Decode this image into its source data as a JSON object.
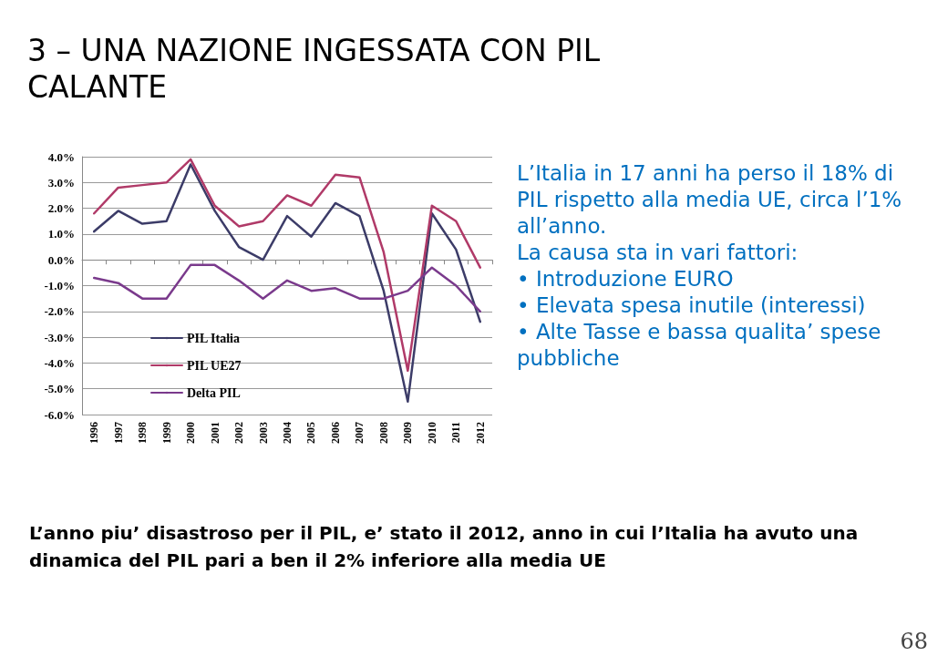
{
  "chart_data": {
    "type": "line",
    "title": "3 – UNA NAZIONE INGESSATA CON PIL CALANTE",
    "categories": [
      "1996",
      "1997",
      "1998",
      "1999",
      "2000",
      "2001",
      "2002",
      "2003",
      "2004",
      "2005",
      "2006",
      "2007",
      "2008",
      "2009",
      "2010",
      "2011",
      "2012"
    ],
    "series": [
      {
        "name": "PIL Italia",
        "color": "#3c3c68",
        "values": [
          1.1,
          1.9,
          1.4,
          1.5,
          3.7,
          1.9,
          0.5,
          0.0,
          1.7,
          0.9,
          2.2,
          1.7,
          -1.2,
          -5.5,
          1.8,
          0.4,
          -2.4
        ]
      },
      {
        "name": "PIL UE27",
        "color": "#b03a68",
        "values": [
          1.8,
          2.8,
          2.9,
          3.0,
          3.9,
          2.1,
          1.3,
          1.5,
          2.5,
          2.1,
          3.3,
          3.2,
          0.3,
          -4.3,
          2.1,
          1.5,
          -0.3
        ]
      },
      {
        "name": "Delta PIL",
        "color": "#7a3a8c",
        "values": [
          -0.7,
          -0.9,
          -1.5,
          -1.5,
          -0.2,
          -0.2,
          -0.8,
          -1.5,
          -0.8,
          -1.2,
          -1.1,
          -1.5,
          -1.5,
          -1.2,
          -0.3,
          -1.0,
          -2.0
        ]
      }
    ],
    "ylim": [
      -6,
      4
    ],
    "yticks": [
      {
        "value": -6,
        "label": "-6.0%"
      },
      {
        "value": -5,
        "label": "-5.0%"
      },
      {
        "value": -4,
        "label": "-4.0%"
      },
      {
        "value": -3,
        "label": "-3.0%"
      },
      {
        "value": -2,
        "label": "-2.0%"
      },
      {
        "value": -1,
        "label": "-1.0%"
      },
      {
        "value": 0,
        "label": "0.0%"
      },
      {
        "value": 1,
        "label": "1.0%"
      },
      {
        "value": 2,
        "label": "2.0%"
      },
      {
        "value": 3,
        "label": "3.0%"
      },
      {
        "value": 4,
        "label": "4.0%"
      }
    ],
    "grid": "y",
    "legend": "bottom left",
    "marker": "none",
    "line_style": "solid",
    "annotations": [
      "L’Italia in 17 anni ha perso il 18% di PIL rispetto alla media UE, circa l’1% all’anno.",
      "La causa sta in vari fattori:",
      "• Introduzione EURO",
      "• Elevata spesa inutile (interessi)",
      "• Alte Tasse e bassa qualita’ spese pubbliche",
      "L’anno piu’ disastroso per il PIL, e’ stato il 2012, anno in cui l’Italia ha avuto una dinamica del PIL pari a ben il 2% inferiore alla media UE",
      "68"
    ]
  }
}
